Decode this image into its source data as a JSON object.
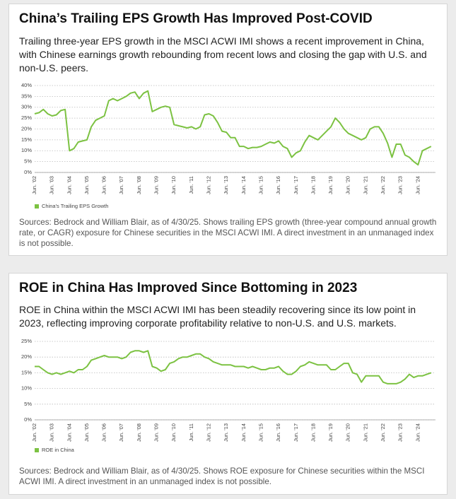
{
  "chart_data": [
    {
      "type": "line",
      "title": "China’s Trailing EPS Growth Has Improved Post-COVID",
      "subtitle": "Trailing three-year EPS growth in the MSCI ACWI IMI shows a recent improvement in China, with Chinese earnings growth rebounding from recent lows and closing the gap with U.S. and non-U.S. peers.",
      "source": "Sources: Bedrock and William Blair, as of 4/30/25. Shows trailing EPS growth (three-year compound annual growth rate, or CAGR) exposure for Chinese securities in the MSCI ACWI IMI. A direct investment in an unmanaged index is not possible.",
      "categories": [
        "Jun. '02",
        null,
        null,
        null,
        "Jun. '03",
        null,
        null,
        null,
        "Jun. '04",
        null,
        null,
        null,
        "Jun. '05",
        null,
        null,
        null,
        "Jun. '06",
        null,
        null,
        null,
        "Jun. '07",
        null,
        null,
        null,
        "Jun. '08",
        null,
        null,
        null,
        "Jun. '09",
        null,
        null,
        null,
        "Jun. '10",
        null,
        null,
        null,
        "Jun. '11",
        null,
        null,
        null,
        "Jun. '12",
        null,
        null,
        null,
        "Jun. '13",
        null,
        null,
        null,
        "Jun. '14",
        null,
        null,
        null,
        "Jun. '15",
        null,
        null,
        null,
        "Jun. '16",
        null,
        null,
        null,
        "Jun. '17",
        null,
        null,
        null,
        "Jun. '18",
        null,
        null,
        null,
        "Jun. '19",
        null,
        null,
        null,
        "Jun. '20",
        null,
        null,
        null,
        "Jun. '21",
        null,
        null,
        null,
        "Jun. '22",
        null,
        null,
        null,
        "Jun. '23",
        null,
        null,
        null,
        "Jun. '24",
        null,
        null,
        null
      ],
      "series": [
        {
          "name": "China's Trailing EPS Growth",
          "color": "#7cc242",
          "values": [
            27,
            27.5,
            29,
            27,
            26,
            26.5,
            28.5,
            29,
            10,
            11,
            14,
            14.5,
            15,
            21,
            24,
            25,
            26,
            33,
            34,
            33,
            34,
            35,
            36.5,
            37,
            34,
            36.5,
            37.5,
            28,
            29,
            30,
            30.5,
            30,
            22,
            21.5,
            21,
            20.5,
            21,
            20,
            21,
            26.5,
            27,
            26,
            23,
            19,
            18.5,
            16,
            16,
            12,
            12,
            11,
            11.5,
            11.5,
            12,
            13,
            14,
            13.5,
            14.5,
            12,
            11,
            7,
            9,
            10,
            14,
            17,
            16,
            15,
            17,
            19,
            21,
            25,
            23,
            20,
            18,
            17,
            16,
            15,
            16,
            20,
            21,
            21,
            18,
            13.5,
            7,
            13,
            13,
            8,
            7,
            5,
            3.5,
            10,
            11,
            12
          ]
        }
      ],
      "ylim": [
        0,
        40
      ],
      "yticks": [
        {
          "value": 0,
          "label": "0%"
        },
        {
          "value": 5,
          "label": "5%"
        },
        {
          "value": 10,
          "label": "10%"
        },
        {
          "value": 15,
          "label": "15%"
        },
        {
          "value": 20,
          "label": "20%"
        },
        {
          "value": 25,
          "label": "25%"
        },
        {
          "value": 30,
          "label": "30%"
        },
        {
          "value": 35,
          "label": "35%"
        },
        {
          "value": 40,
          "label": "40%"
        }
      ],
      "grid": true
    },
    {
      "type": "line",
      "title": "ROE in China Has Improved Since Bottoming in 2023",
      "subtitle": "ROE in China within the MSCI ACWI IMI has been steadily recovering since its low point in 2023, reflecting improving corporate profitability relative to non-U.S. and U.S. markets.",
      "source": "Sources: Bedrock and William Blair, as of 4/30/25. Shows ROE exposure for Chinese securities within the MSCI ACWI IMI. A direct investment in an unmanaged index is not possible.",
      "categories": [
        "Jun. '02",
        null,
        null,
        null,
        "Jun. '03",
        null,
        null,
        null,
        "Jun. '04",
        null,
        null,
        null,
        "Jun. '05",
        null,
        null,
        null,
        "Jun. '06",
        null,
        null,
        null,
        "Jun. '07",
        null,
        null,
        null,
        "Jun. '08",
        null,
        null,
        null,
        "Jun. '09",
        null,
        null,
        null,
        "Jun. '10",
        null,
        null,
        null,
        "Jun. '11",
        null,
        null,
        null,
        "Jun. '12",
        null,
        null,
        null,
        "Jun. '13",
        null,
        null,
        null,
        "Jun. '14",
        null,
        null,
        null,
        "Jun. '15",
        null,
        null,
        null,
        "Jun. '16",
        null,
        null,
        null,
        "Jun. '17",
        null,
        null,
        null,
        "Jun. '18",
        null,
        null,
        null,
        "Jun. '19",
        null,
        null,
        null,
        "Jun. '20",
        null,
        null,
        null,
        "Jun. '21",
        null,
        null,
        null,
        "Jun. '22",
        null,
        null,
        null,
        "Jun. '23",
        null,
        null,
        null,
        "Jun. '24",
        null,
        null,
        null
      ],
      "series": [
        {
          "name": "ROE in China",
          "color": "#7cc242",
          "values": [
            17,
            17,
            16,
            15,
            14.5,
            15,
            14.5,
            15,
            15.5,
            15,
            16,
            16,
            17,
            19,
            19.5,
            20,
            20.5,
            20,
            20,
            20,
            19.5,
            20,
            21.5,
            22,
            22,
            21.5,
            22,
            17,
            16.5,
            15.5,
            16,
            18,
            18.5,
            19.5,
            20,
            20,
            20.5,
            21,
            21,
            20,
            19.5,
            18.5,
            18,
            17.5,
            17.5,
            17.5,
            17,
            17,
            17,
            16.5,
            17,
            16.5,
            16,
            16,
            16.5,
            16.5,
            17,
            15.5,
            14.5,
            14.5,
            15.5,
            17,
            17.5,
            18.5,
            18,
            17.5,
            17.5,
            17.5,
            16,
            16,
            17,
            18,
            18,
            15,
            14.5,
            12,
            14,
            14,
            14,
            14,
            12,
            11.5,
            11.5,
            11.5,
            12,
            13,
            14.5,
            13.5,
            14,
            14,
            14.5,
            15
          ]
        }
      ],
      "ylim": [
        0,
        25
      ],
      "yticks": [
        {
          "value": 0,
          "label": "0%"
        },
        {
          "value": 5,
          "label": "5%"
        },
        {
          "value": 10,
          "label": "10%"
        },
        {
          "value": 15,
          "label": "15%"
        },
        {
          "value": 20,
          "label": "20%"
        },
        {
          "value": 25,
          "label": "25%"
        }
      ],
      "grid": true
    }
  ]
}
